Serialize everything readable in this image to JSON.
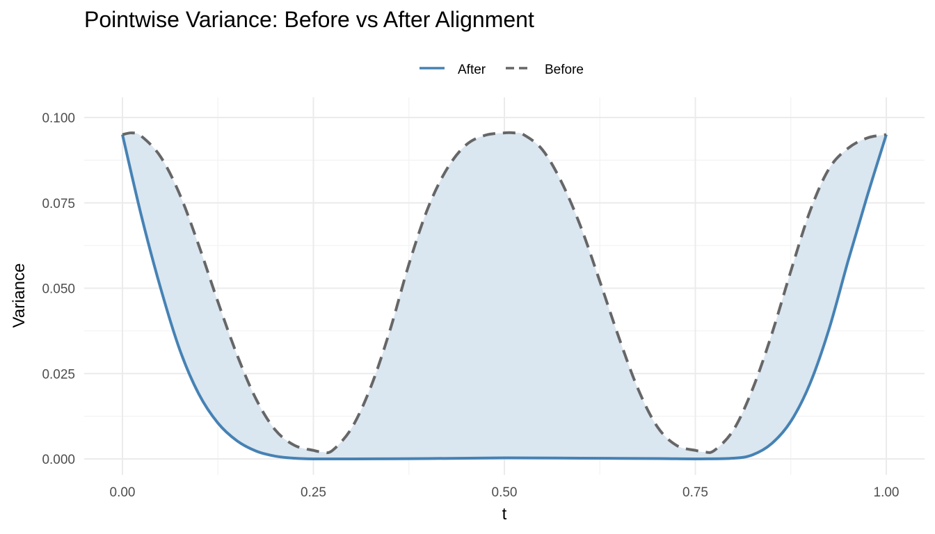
{
  "chart_data": {
    "type": "line",
    "title": "Pointwise Variance: Before vs After Alignment",
    "xlabel": "t",
    "ylabel": "Variance",
    "xlim": [
      0,
      1
    ],
    "ylim": [
      0,
      0.1
    ],
    "x_ticks": [
      0,
      0.25,
      0.5,
      0.75,
      1
    ],
    "x_tick_labels": [
      "0.00",
      "0.25",
      "0.50",
      "0.75",
      "1.00"
    ],
    "y_ticks": [
      0,
      0.025,
      0.05,
      0.075,
      0.1
    ],
    "y_tick_labels": [
      "0.000",
      "0.025",
      "0.050",
      "0.075",
      "0.100"
    ],
    "grid": true,
    "legend_position": "top",
    "fill_between": {
      "color": "#dae6f0"
    },
    "series": [
      {
        "name": "After",
        "style": "solid",
        "color": "#4682b4",
        "x": [
          0,
          0.025,
          0.05,
          0.075,
          0.1,
          0.125,
          0.15,
          0.175,
          0.2,
          0.225,
          0.25,
          0.3,
          0.4,
          0.5,
          0.6,
          0.7,
          0.75,
          0.8,
          0.825,
          0.85,
          0.875,
          0.9,
          0.925,
          0.95,
          0.975,
          1
        ],
        "values": [
          0.095,
          0.071,
          0.05,
          0.032,
          0.019,
          0.0105,
          0.0053,
          0.0023,
          0.0008,
          0.0002,
          0.0,
          0.0,
          0.0001,
          0.0003,
          0.0002,
          0.0001,
          0.0,
          0.0002,
          0.0012,
          0.0045,
          0.011,
          0.022,
          0.038,
          0.058,
          0.077,
          0.095
        ]
      },
      {
        "name": "Before",
        "style": "dashed",
        "color": "#666666",
        "x": [
          0,
          0.0125,
          0.025,
          0.05,
          0.075,
          0.1,
          0.125,
          0.15,
          0.175,
          0.2,
          0.225,
          0.25,
          0.2625,
          0.275,
          0.3,
          0.325,
          0.35,
          0.375,
          0.4,
          0.425,
          0.45,
          0.475,
          0.5,
          0.5125,
          0.525,
          0.55,
          0.575,
          0.6,
          0.625,
          0.65,
          0.675,
          0.7,
          0.725,
          0.75,
          0.7625,
          0.775,
          0.8,
          0.825,
          0.85,
          0.875,
          0.9,
          0.925,
          0.95,
          0.975,
          1
        ],
        "values": [
          0.095,
          0.0955,
          0.0945,
          0.0885,
          0.0775,
          0.0625,
          0.046,
          0.0305,
          0.0175,
          0.0085,
          0.004,
          0.0025,
          0.002,
          0.0025,
          0.009,
          0.021,
          0.0375,
          0.057,
          0.0735,
          0.085,
          0.092,
          0.0948,
          0.0955,
          0.0955,
          0.095,
          0.0905,
          0.081,
          0.068,
          0.052,
          0.0355,
          0.0205,
          0.0095,
          0.004,
          0.0025,
          0.002,
          0.0025,
          0.0085,
          0.0205,
          0.0365,
          0.055,
          0.0725,
          0.085,
          0.091,
          0.094,
          0.095
        ]
      }
    ]
  }
}
